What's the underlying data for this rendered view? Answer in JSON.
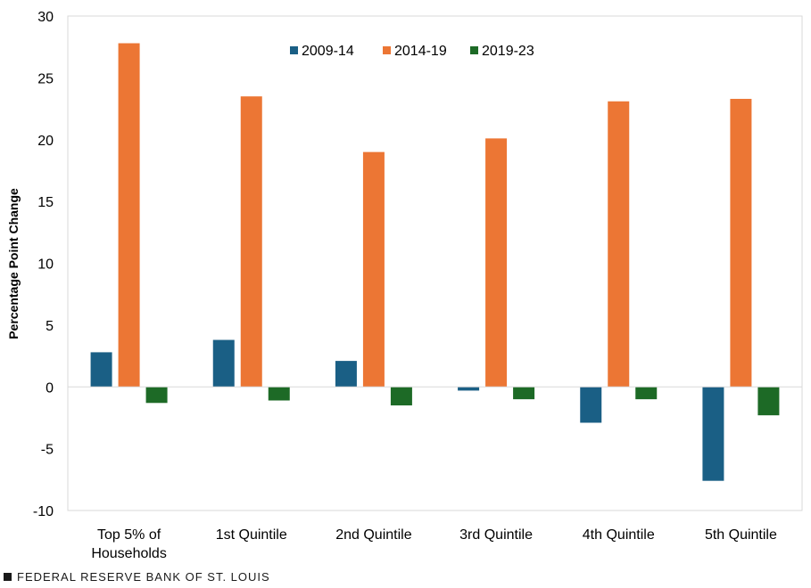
{
  "chart_data": {
    "type": "bar",
    "title": "",
    "xlabel": "",
    "ylabel": "Percentage Point Change",
    "ylim": [
      -10,
      30
    ],
    "yticks": [
      30,
      25,
      20,
      15,
      10,
      5,
      0,
      -5,
      -10
    ],
    "grid": false,
    "legend_position": "top-center",
    "categories": [
      [
        "Top 5% of",
        "Households"
      ],
      [
        "1st Quintile"
      ],
      [
        "2nd Quintile"
      ],
      [
        "3rd Quintile"
      ],
      [
        "4th Quintile"
      ],
      [
        "5th Quintile"
      ]
    ],
    "series": [
      {
        "name": "2009-14",
        "color": "#1a5f85",
        "values": [
          2.8,
          3.8,
          2.1,
          -0.3,
          -2.9,
          -7.6
        ]
      },
      {
        "name": "2014-19",
        "color": "#ec7634",
        "values": [
          27.8,
          23.5,
          19.0,
          20.1,
          23.1,
          23.3
        ]
      },
      {
        "name": "2019-23",
        "color": "#1d6a26",
        "values": [
          -1.3,
          -1.1,
          -1.5,
          -1.0,
          -1.0,
          -2.3
        ]
      }
    ]
  },
  "footer": {
    "source": "FEDERAL RESERVE BANK OF ST. LOUIS"
  }
}
